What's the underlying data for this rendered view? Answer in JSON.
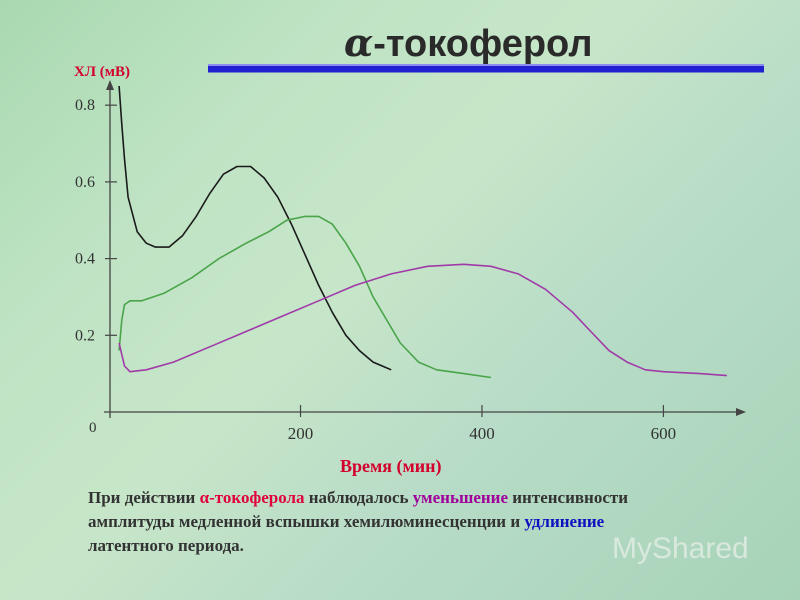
{
  "title": {
    "symbol": "α",
    "text": "-токоферол"
  },
  "caption": {
    "p1": "При действии ",
    "p2": "α-токоферола",
    "p3": " наблюдалось ",
    "p4": "уменьшение",
    "p5": " интенсивности амплитуды медленной вспышки хемилюминесценции и ",
    "p6": "удлинение",
    "p7": " латентного периода."
  },
  "watermark": "MyShared",
  "colors": {
    "title": "#2a2a2a",
    "axis_label": "#d4002c",
    "series_black": "#1a1a1a",
    "series_green": "#4aa44a",
    "series_purple": "#a03aa8",
    "title_bar": "#2020d0"
  },
  "chart_data": {
    "type": "line",
    "xlabel": "Время (мин)",
    "ylabel": "ХЛ (мВ)",
    "xlim": [
      -10,
      680
    ],
    "ylim": [
      0,
      0.85
    ],
    "x_ticks": [
      200,
      400,
      600
    ],
    "y_ticks": [
      0.2,
      0.4,
      0.6,
      0.8
    ],
    "origin_label": "0",
    "grid": false,
    "series": [
      {
        "color": "#1a1a1a",
        "points": [
          [
            0,
            0.85
          ],
          [
            3,
            0.75
          ],
          [
            6,
            0.66
          ],
          [
            10,
            0.56
          ],
          [
            20,
            0.47
          ],
          [
            30,
            0.44
          ],
          [
            40,
            0.43
          ],
          [
            55,
            0.43
          ],
          [
            70,
            0.46
          ],
          [
            85,
            0.51
          ],
          [
            100,
            0.57
          ],
          [
            115,
            0.62
          ],
          [
            130,
            0.64
          ],
          [
            145,
            0.64
          ],
          [
            160,
            0.61
          ],
          [
            175,
            0.56
          ],
          [
            190,
            0.49
          ],
          [
            205,
            0.41
          ],
          [
            220,
            0.33
          ],
          [
            235,
            0.26
          ],
          [
            250,
            0.2
          ],
          [
            265,
            0.16
          ],
          [
            280,
            0.13
          ],
          [
            290,
            0.12
          ],
          [
            300,
            0.11
          ]
        ]
      },
      {
        "color": "#4aa44a",
        "points": [
          [
            0,
            0.16
          ],
          [
            3,
            0.24
          ],
          [
            6,
            0.28
          ],
          [
            12,
            0.29
          ],
          [
            25,
            0.29
          ],
          [
            50,
            0.31
          ],
          [
            80,
            0.35
          ],
          [
            110,
            0.4
          ],
          [
            140,
            0.44
          ],
          [
            165,
            0.47
          ],
          [
            185,
            0.5
          ],
          [
            205,
            0.51
          ],
          [
            220,
            0.51
          ],
          [
            235,
            0.49
          ],
          [
            250,
            0.44
          ],
          [
            265,
            0.38
          ],
          [
            280,
            0.3
          ],
          [
            295,
            0.24
          ],
          [
            310,
            0.18
          ],
          [
            330,
            0.13
          ],
          [
            350,
            0.11
          ],
          [
            380,
            0.1
          ],
          [
            410,
            0.09
          ]
        ]
      },
      {
        "color": "#a03aa8",
        "points": [
          [
            0,
            0.18
          ],
          [
            3,
            0.15
          ],
          [
            6,
            0.12
          ],
          [
            12,
            0.105
          ],
          [
            30,
            0.11
          ],
          [
            60,
            0.13
          ],
          [
            100,
            0.17
          ],
          [
            140,
            0.21
          ],
          [
            180,
            0.25
          ],
          [
            220,
            0.29
          ],
          [
            260,
            0.33
          ],
          [
            300,
            0.36
          ],
          [
            340,
            0.38
          ],
          [
            380,
            0.385
          ],
          [
            410,
            0.38
          ],
          [
            440,
            0.36
          ],
          [
            470,
            0.32
          ],
          [
            500,
            0.26
          ],
          [
            520,
            0.21
          ],
          [
            540,
            0.16
          ],
          [
            560,
            0.13
          ],
          [
            580,
            0.11
          ],
          [
            600,
            0.105
          ],
          [
            640,
            0.1
          ],
          [
            670,
            0.095
          ]
        ]
      }
    ]
  }
}
